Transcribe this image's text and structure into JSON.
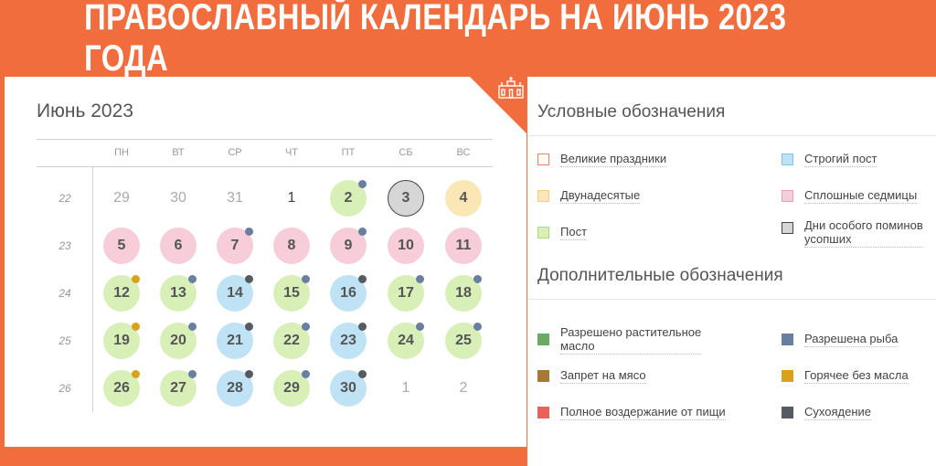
{
  "header": {
    "title": "ПРАВОСЛАВНЫЙ КАЛЕНДАРЬ НА ИЮНЬ 2023 ГОДА"
  },
  "calendar": {
    "title": "Июнь 2023",
    "weekdays": [
      "ПН",
      "ВТ",
      "СР",
      "ЧТ",
      "ПТ",
      "СБ",
      "ВС"
    ],
    "weeks": [
      {
        "number": "22",
        "days": [
          "29",
          "30",
          "31",
          "1",
          "2",
          "3",
          "4"
        ]
      },
      {
        "number": "23",
        "days": [
          "5",
          "6",
          "7",
          "8",
          "9",
          "10",
          "11"
        ]
      },
      {
        "number": "24",
        "days": [
          "12",
          "13",
          "14",
          "15",
          "16",
          "17",
          "18"
        ]
      },
      {
        "number": "25",
        "days": [
          "19",
          "20",
          "21",
          "22",
          "23",
          "24",
          "25"
        ]
      },
      {
        "number": "26",
        "days": [
          "26",
          "27",
          "28",
          "29",
          "30",
          "1",
          "2"
        ]
      }
    ]
  },
  "legend": {
    "title": "Условные обозначения",
    "items": [
      {
        "label": "Великие праздники",
        "color": "#e8835a"
      },
      {
        "label": "Строгий пост",
        "color": "#bfe3f4"
      },
      {
        "label": "Двунадесятые",
        "color": "#fbe6b5"
      },
      {
        "label": "Сплошные седмицы",
        "color": "#f6cdd9"
      },
      {
        "label": "Пост",
        "color": "#d8f0b8"
      },
      {
        "label_line1": "Дни особого поминов",
        "label_line2": "усопших",
        "color": "#d6d6d6"
      }
    ]
  },
  "additional": {
    "title": "Дополнительные обозначения",
    "items": [
      {
        "label_line1": "Разрешено растительное",
        "label_line2": "масло",
        "color": "#6aaa64"
      },
      {
        "label": "Разрешена рыба",
        "color": "#6a7fa0"
      },
      {
        "label": "Запрет на мясо",
        "color": "#a8783a"
      },
      {
        "label": "Горячее без масла",
        "color": "#d9a21c"
      },
      {
        "label": "Полное воздержание от пищи",
        "color": "#e8625a"
      },
      {
        "label": "Сухоядение",
        "color": "#555b60"
      }
    ]
  }
}
